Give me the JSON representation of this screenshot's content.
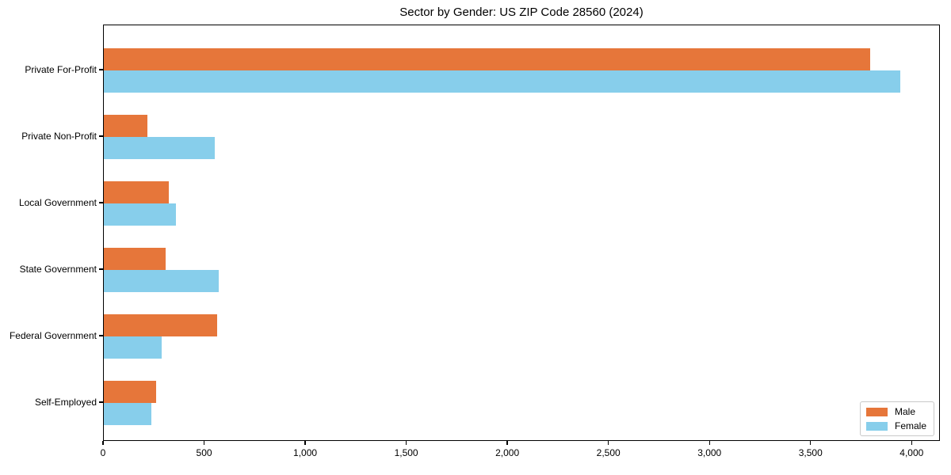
{
  "chart_data": {
    "type": "bar",
    "orientation": "horizontal",
    "title": "Sector by Gender: US ZIP Code 28560 (2024)",
    "categories": [
      "Private For-Profit",
      "Private Non-Profit",
      "Local Government",
      "State Government",
      "Federal Government",
      "Self-Employed"
    ],
    "series": [
      {
        "name": "Male",
        "color": "#e6763a",
        "values": [
          3790,
          215,
          320,
          305,
          560,
          260
        ]
      },
      {
        "name": "Female",
        "color": "#87ceeb",
        "values": [
          3940,
          548,
          355,
          567,
          285,
          235
        ]
      }
    ],
    "xlabel": "",
    "ylabel": "",
    "xlim": [
      0,
      4140
    ],
    "x_ticks": [
      0,
      500,
      1000,
      1500,
      2000,
      2500,
      3000,
      3500,
      4000
    ],
    "x_tick_labels": [
      "0",
      "500",
      "1,000",
      "1,500",
      "2,000",
      "2,500",
      "3,000",
      "3,500",
      "4,000"
    ],
    "grid": false,
    "legend_position": "lower right"
  }
}
